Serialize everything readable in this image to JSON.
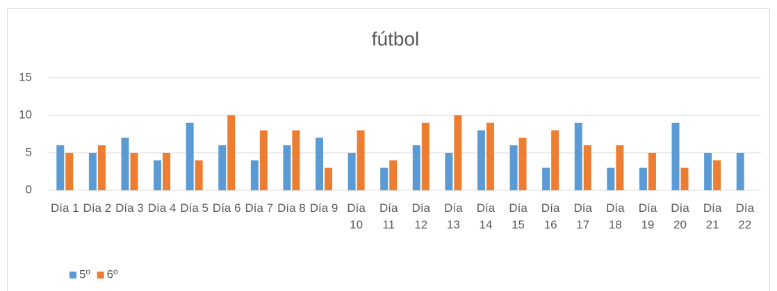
{
  "chart_data": {
    "type": "bar",
    "title": "fútbol",
    "categories": [
      "Día 1",
      "Día 2",
      "Día 3",
      "Día 4",
      "Día 5",
      "Día 6",
      "Día 7",
      "Día 8",
      "Día 9",
      "Día 10",
      "Día 11",
      "Día 12",
      "Día 13",
      "Día 14",
      "Día 15",
      "Día 16",
      "Día 17",
      "Día 18",
      "Día 19",
      "Día 20",
      "Día 21",
      "Día 22"
    ],
    "series": [
      {
        "name": "5º",
        "color": "#5b9bd5",
        "values": [
          6,
          5,
          7,
          4,
          9,
          6,
          4,
          6,
          7,
          5,
          3,
          6,
          5,
          8,
          6,
          3,
          9,
          3,
          3,
          9,
          5,
          5
        ]
      },
      {
        "name": "6º",
        "color": "#ed7d31",
        "values": [
          5,
          6,
          5,
          5,
          4,
          10,
          8,
          8,
          3,
          8,
          4,
          9,
          10,
          9,
          7,
          8,
          6,
          6,
          5,
          3,
          4,
          null
        ]
      }
    ],
    "ylim": [
      0,
      15
    ],
    "yticks": [
      0,
      5,
      10,
      15
    ],
    "grid": true,
    "legend": "bottom"
  }
}
